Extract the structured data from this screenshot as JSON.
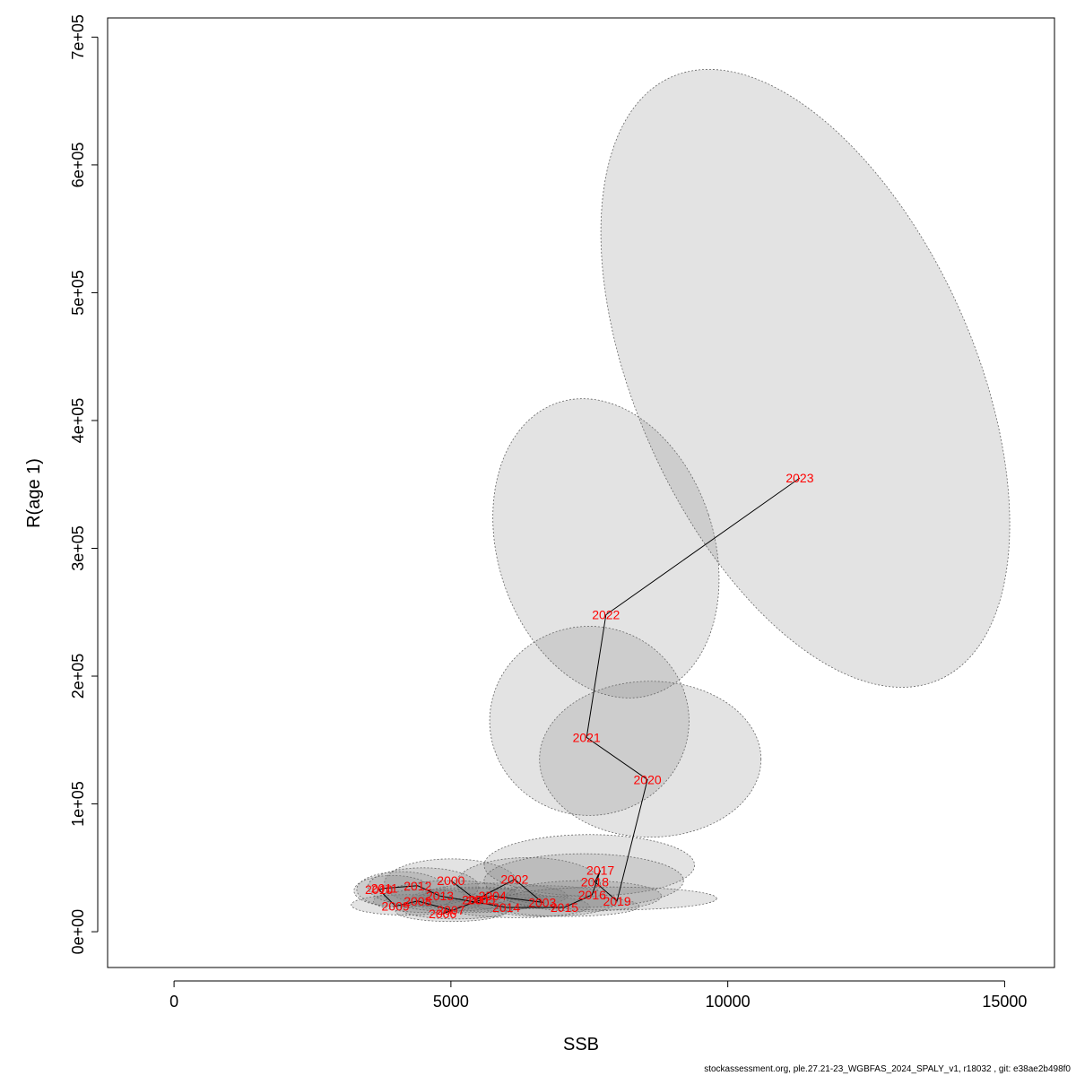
{
  "chart_data": {
    "type": "scatter",
    "title": "",
    "xlabel": "SSB",
    "ylabel": "R(age 1)",
    "xlim": [
      -1200,
      15900
    ],
    "ylim": [
      -28000,
      715000
    ],
    "x_ticks": [
      0,
      5000,
      10000,
      15000
    ],
    "x_tick_labels": [
      "0",
      "5000",
      "10000",
      "15000"
    ],
    "y_ticks": [
      0,
      100000,
      200000,
      300000,
      400000,
      500000,
      600000,
      700000
    ],
    "y_tick_labels": [
      "0e+00",
      "1e+05",
      "2e+05",
      "3e+05",
      "4e+05",
      "5e+05",
      "6e+05",
      "7e+05"
    ],
    "points": [
      {
        "year": "2000",
        "x": 5000,
        "y": 40000
      },
      {
        "year": "2001",
        "x": 5450,
        "y": 25000
      },
      {
        "year": "2002",
        "x": 6150,
        "y": 41000
      },
      {
        "year": "2003",
        "x": 6650,
        "y": 23000
      },
      {
        "year": "2004",
        "x": 5750,
        "y": 28000
      },
      {
        "year": "2005",
        "x": 5550,
        "y": 25000
      },
      {
        "year": "2006",
        "x": 4850,
        "y": 14000
      },
      {
        "year": "2007",
        "x": 5000,
        "y": 17000
      },
      {
        "year": "2008",
        "x": 4400,
        "y": 24000
      },
      {
        "year": "2009",
        "x": 4000,
        "y": 20000
      },
      {
        "year": "2010",
        "x": 3700,
        "y": 33000
      },
      {
        "year": "2011",
        "x": 3800,
        "y": 34000
      },
      {
        "year": "2012",
        "x": 4400,
        "y": 36000
      },
      {
        "year": "2013",
        "x": 4800,
        "y": 28000
      },
      {
        "year": "2014",
        "x": 6000,
        "y": 19000
      },
      {
        "year": "2015",
        "x": 7050,
        "y": 19000
      },
      {
        "year": "2016",
        "x": 7550,
        "y": 29000
      },
      {
        "year": "2017",
        "x": 7700,
        "y": 48000
      },
      {
        "year": "2018",
        "x": 7600,
        "y": 39000
      },
      {
        "year": "2019",
        "x": 8000,
        "y": 24000
      },
      {
        "year": "2020",
        "x": 8550,
        "y": 119000
      },
      {
        "year": "2021",
        "x": 7450,
        "y": 152000
      },
      {
        "year": "2022",
        "x": 7800,
        "y": 248000
      },
      {
        "year": "2023",
        "x": 11300,
        "y": 355000
      }
    ],
    "confidence_ellipses": [
      {
        "year": "2000",
        "cx": 5000,
        "cy": 38000,
        "rx": 1200,
        "ry": 19000,
        "rot": 0
      },
      {
        "year": "2001",
        "cx": 5450,
        "cy": 25000,
        "rx": 1200,
        "ry": 10000,
        "rot": 0
      },
      {
        "year": "2002",
        "cx": 6400,
        "cy": 38000,
        "rx": 1300,
        "ry": 20000,
        "rot": 0
      },
      {
        "year": "2003",
        "cx": 6700,
        "cy": 24000,
        "rx": 1300,
        "ry": 12000,
        "rot": 0
      },
      {
        "year": "2004",
        "cx": 5800,
        "cy": 28000,
        "rx": 1300,
        "ry": 10000,
        "rot": 0
      },
      {
        "year": "2005",
        "cx": 5550,
        "cy": 25000,
        "rx": 1200,
        "ry": 9000,
        "rot": 0
      },
      {
        "year": "2006",
        "cx": 5000,
        "cy": 16000,
        "rx": 1000,
        "ry": 8000,
        "rot": 0
      },
      {
        "year": "2007",
        "cx": 5100,
        "cy": 18000,
        "rx": 1000,
        "ry": 8000,
        "rot": 0
      },
      {
        "year": "2008",
        "cx": 4600,
        "cy": 24000,
        "rx": 1000,
        "ry": 9000,
        "rot": 0
      },
      {
        "year": "2009",
        "cx": 4200,
        "cy": 21000,
        "rx": 1000,
        "ry": 8000,
        "rot": 0
      },
      {
        "year": "2010",
        "cx": 3950,
        "cy": 32000,
        "rx": 700,
        "ry": 12000,
        "rot": 0
      },
      {
        "year": "2011",
        "cx": 4100,
        "cy": 33000,
        "rx": 800,
        "ry": 14000,
        "rot": 0
      },
      {
        "year": "2012",
        "cx": 4500,
        "cy": 35000,
        "rx": 1000,
        "ry": 15000,
        "rot": 0
      },
      {
        "year": "2013",
        "cx": 5000,
        "cy": 28000,
        "rx": 1200,
        "ry": 12000,
        "rot": 0
      },
      {
        "year": "2014",
        "cx": 6200,
        "cy": 20000,
        "rx": 1300,
        "ry": 9000,
        "rot": 0
      },
      {
        "year": "2015",
        "cx": 7100,
        "cy": 20000,
        "rx": 1300,
        "ry": 8000,
        "rot": 0
      },
      {
        "year": "2016",
        "cx": 7400,
        "cy": 28000,
        "rx": 1400,
        "ry": 12000,
        "rot": 0
      },
      {
        "year": "2017",
        "cx": 7500,
        "cy": 52000,
        "rx": 1900,
        "ry": 24000,
        "rot": 0
      },
      {
        "year": "2018",
        "cx": 7400,
        "cy": 40000,
        "rx": 1800,
        "ry": 21000,
        "rot": 0
      },
      {
        "year": "2019",
        "cx": 7900,
        "cy": 26000,
        "rx": 1900,
        "ry": 9000,
        "rot": 0
      },
      {
        "year": "2020",
        "cx": 8600,
        "cy": 135000,
        "rx": 2000,
        "ry": 61000,
        "rot": 0
      },
      {
        "year": "2021",
        "cx": 7500,
        "cy": 165000,
        "rx": 1800,
        "ry": 74000,
        "rot": 0
      },
      {
        "year": "2022",
        "cx": 7800,
        "cy": 300000,
        "rx": 1950,
        "ry": 120000,
        "rot": -18
      },
      {
        "year": "2023",
        "cx": 11400,
        "cy": 433000,
        "rx": 3050,
        "ry": 258000,
        "rot": -24
      }
    ],
    "grid": false,
    "legend": "none"
  },
  "footer": "stockassessment.org, ple.27.21-23_WGBFAS_2024_SPALY_v1, r18032 , git: e38ae2b498f0"
}
